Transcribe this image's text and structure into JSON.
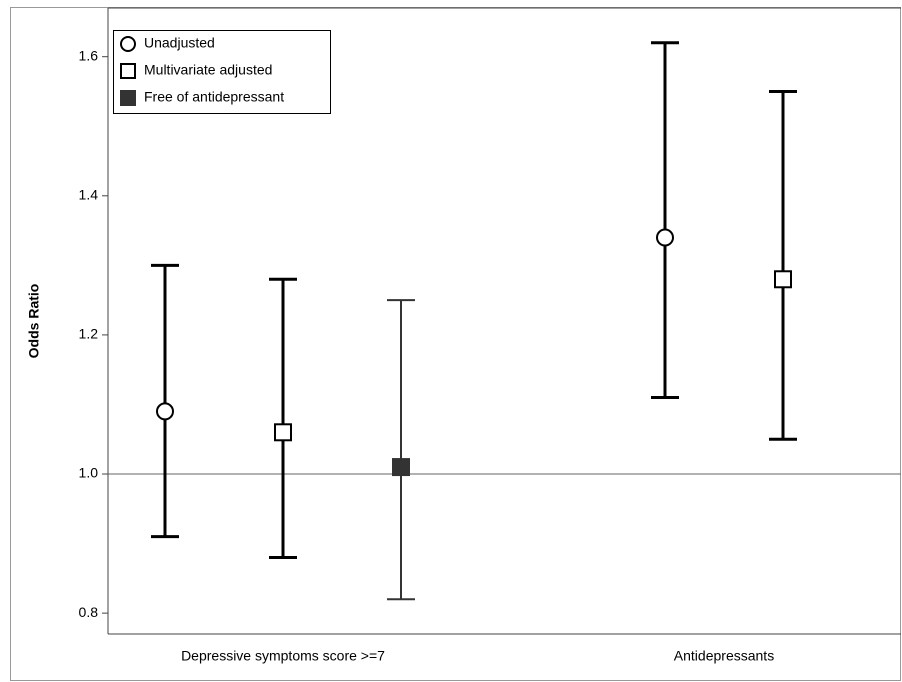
{
  "chart_data": {
    "type": "errorbar",
    "y_label": "Odds Ratio",
    "categories": [
      "Depressive symptoms score >=7",
      "Antidepressants"
    ],
    "series": [
      {
        "name": "Unadjusted",
        "marker": "circle",
        "filled": false,
        "color": "#000000",
        "values": [
          1.09,
          1.34
        ],
        "lower": [
          0.91,
          1.11
        ],
        "upper": [
          1.3,
          1.62
        ]
      },
      {
        "name": "Multivariate adjusted",
        "marker": "square",
        "filled": false,
        "color": "#000000",
        "values": [
          1.06,
          1.28
        ],
        "lower": [
          0.88,
          1.05
        ],
        "upper": [
          1.28,
          1.55
        ]
      },
      {
        "name": "Free of antidepressant",
        "marker": "square",
        "filled": true,
        "color": "#333333",
        "values": [
          1.01,
          null
        ],
        "lower": [
          0.82,
          null
        ],
        "upper": [
          1.25,
          null
        ]
      }
    ],
    "ylim": [
      0.77,
      1.67
    ],
    "yticks": [
      0.8,
      {
        "value": 1,
        "label": "1.0"
      },
      1.2,
      1.4,
      1.6
    ],
    "refline": 1,
    "legend": "upper-left"
  }
}
